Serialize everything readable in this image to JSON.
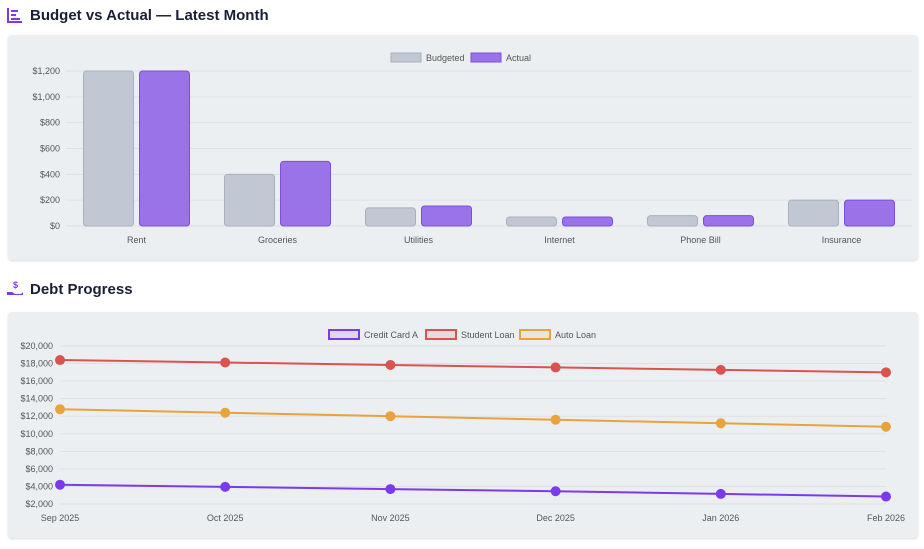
{
  "sections": {
    "budget": {
      "title": "Budget vs Actual — Latest Month",
      "icon": "bar-chart-icon"
    },
    "debt": {
      "title": "Debt Progress",
      "icon": "hand-dollar-icon"
    }
  },
  "chart_data": [
    {
      "type": "bar",
      "title": "",
      "categories": [
        "Rent",
        "Groceries",
        "Utilities",
        "Internet",
        "Phone Bill",
        "Insurance"
      ],
      "series": [
        {
          "name": "Budgeted",
          "values": [
            1200,
            400,
            140,
            70,
            80,
            200
          ],
          "color": "#c2c8d3"
        },
        {
          "name": "Actual",
          "values": [
            1200,
            500,
            155,
            70,
            80,
            200
          ],
          "color": "#9b73e8"
        }
      ],
      "ylim": [
        0,
        1200
      ],
      "yticks": [
        "$0",
        "$200",
        "$400",
        "$600",
        "$800",
        "$1,000",
        "$1,200"
      ],
      "legend": "top",
      "grid": true
    },
    {
      "type": "line",
      "title": "",
      "categories": [
        "Sep 2025",
        "Oct 2025",
        "Nov 2025",
        "Dec 2025",
        "Jan 2026",
        "Feb 2026"
      ],
      "series": [
        {
          "name": "Credit Card A",
          "values": [
            4200,
            3950,
            3700,
            3450,
            3150,
            2850
          ],
          "color": "#7c3aed"
        },
        {
          "name": "Student Loan",
          "values": [
            18400,
            18120,
            17840,
            17560,
            17280,
            17000
          ],
          "color": "#d9534f"
        },
        {
          "name": "Auto Loan",
          "values": [
            12800,
            12400,
            12000,
            11600,
            11200,
            10800
          ],
          "color": "#e8a33d"
        }
      ],
      "ylim": [
        2000,
        20000
      ],
      "yticks": [
        "$2,000",
        "$4,000",
        "$6,000",
        "$8,000",
        "$10,000",
        "$12,000",
        "$14,000",
        "$16,000",
        "$18,000",
        "$20,000"
      ],
      "legend": "top",
      "grid": true
    }
  ]
}
